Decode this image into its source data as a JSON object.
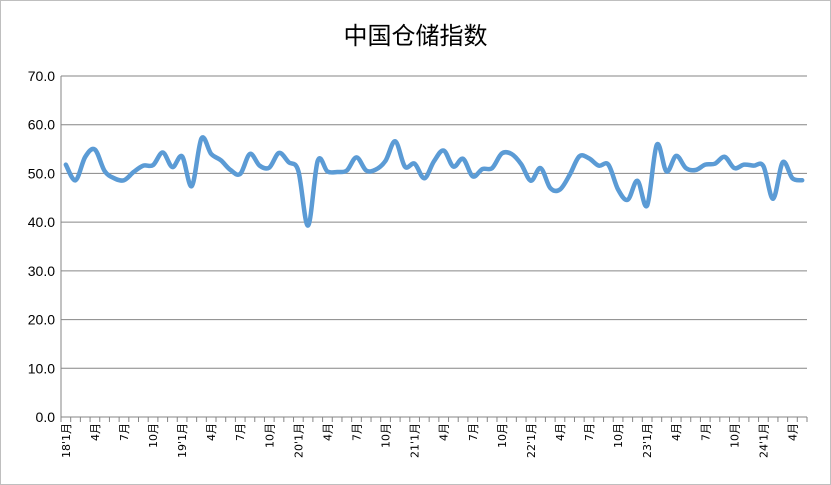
{
  "chart_data": {
    "type": "line",
    "title": "中国仓储指数",
    "ylim": [
      0,
      70
    ],
    "ytick_labels": [
      "0.0",
      "10.0",
      "20.0",
      "30.0",
      "40.0",
      "50.0",
      "60.0",
      "70.0"
    ],
    "grid": true,
    "legend": "none",
    "series_color": "#5b9bd5",
    "xtick_labels": [
      "18'1月",
      "4月",
      "7月",
      "10月",
      "19'1月",
      "4月",
      "7月",
      "10月",
      "20'1月",
      "4月",
      "7月",
      "10月",
      "21'1月",
      "4月",
      "7月",
      "10月",
      "22'1月",
      "4月",
      "7月",
      "10月",
      "23'1月",
      "4月",
      "7月",
      "10月",
      "24'1月",
      "4月"
    ],
    "series": [
      {
        "values": [
          51.8,
          48.6,
          53.4,
          54.9,
          50.5,
          49.0,
          48.6,
          50.3,
          51.6,
          51.7,
          54.3,
          51.3,
          53.5,
          47.4,
          57.2,
          54.0,
          52.7,
          50.7,
          49.9,
          54.0,
          51.6,
          51.2,
          54.2,
          52.3,
          50.5,
          39.3,
          52.6,
          50.4,
          50.3,
          50.6,
          53.3,
          50.6,
          50.8,
          52.6,
          56.6,
          51.4,
          52.0,
          49.0,
          52.5,
          54.7,
          51.4,
          53.0,
          49.4,
          50.9,
          51.1,
          54.1,
          54.0,
          51.9,
          48.5,
          51.1,
          47.0,
          46.7,
          49.7,
          53.5,
          53.1,
          51.6,
          51.8,
          46.7,
          44.6,
          48.5,
          43.4,
          55.9,
          50.4,
          53.6,
          51.1,
          50.7,
          51.8,
          52.0,
          53.4,
          51.1,
          51.8,
          51.6,
          51.5,
          44.8,
          52.3,
          49.0,
          48.6
        ]
      }
    ]
  }
}
